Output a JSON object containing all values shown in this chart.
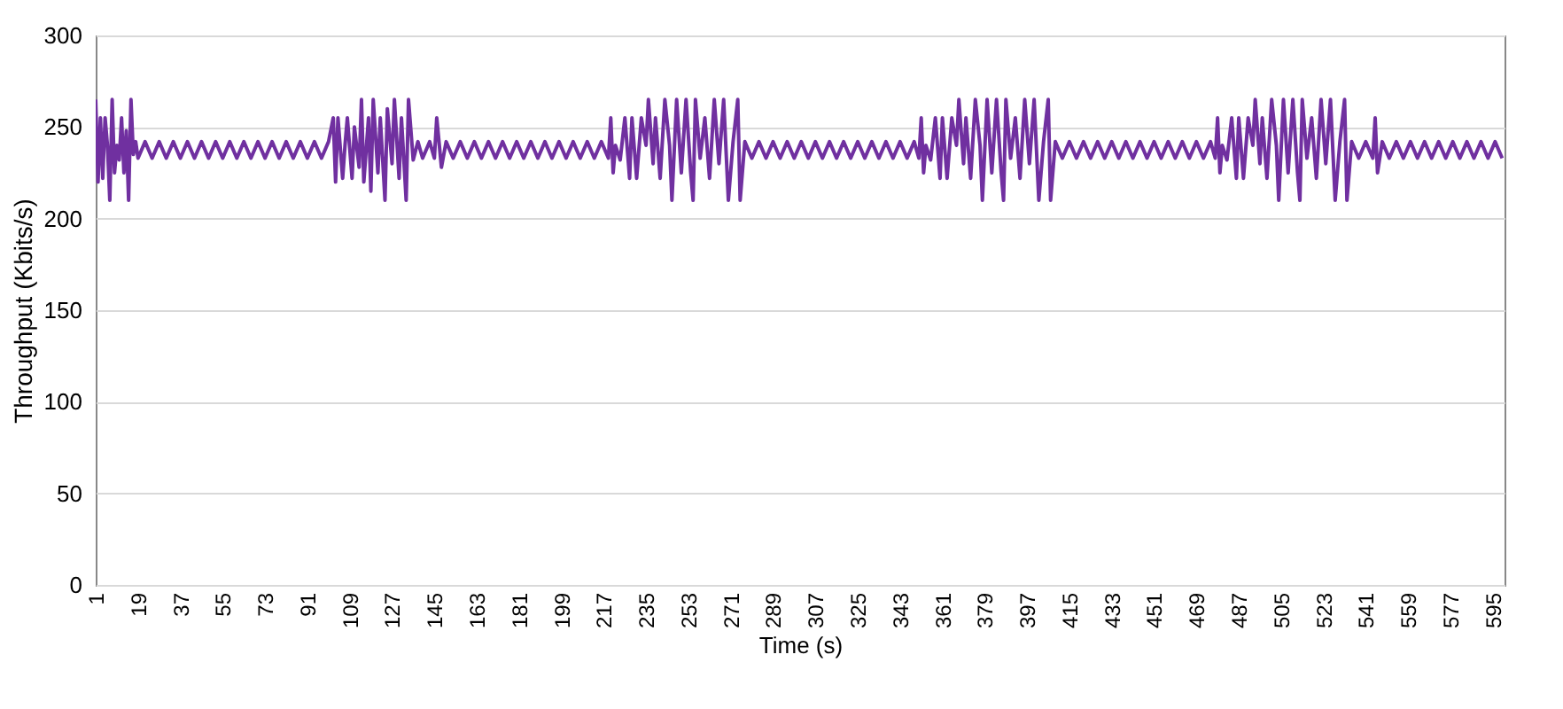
{
  "chart_data": {
    "type": "line",
    "xlabel": "Time (s)",
    "ylabel": "Throughput (Kbits/s)",
    "xlim": [
      1,
      600
    ],
    "ylim": [
      0,
      300
    ],
    "xticks": [
      1,
      19,
      37,
      55,
      73,
      91,
      109,
      127,
      145,
      163,
      181,
      199,
      217,
      235,
      253,
      271,
      289,
      307,
      325,
      343,
      361,
      379,
      397,
      415,
      433,
      451,
      469,
      487,
      505,
      523,
      541,
      559,
      577,
      595
    ],
    "yticks": [
      0,
      50,
      100,
      150,
      200,
      250,
      300
    ],
    "grid": "y",
    "marker": "none",
    "line_style": "solid",
    "x": [
      1,
      2,
      3,
      4,
      5,
      6,
      7,
      8,
      9,
      10,
      11,
      12,
      13,
      14,
      15,
      16,
      17,
      18,
      19,
      22,
      25,
      28,
      31,
      34,
      37,
      40,
      43,
      46,
      49,
      52,
      55,
      58,
      61,
      64,
      67,
      70,
      73,
      76,
      79,
      82,
      85,
      88,
      91,
      94,
      97,
      100,
      102,
      103,
      104,
      106,
      107,
      108,
      110,
      111,
      113,
      114,
      115,
      117,
      118,
      119,
      121,
      122,
      124,
      125,
      127,
      128,
      130,
      131,
      133,
      134,
      136,
      138,
      140,
      143,
      145,
      146,
      148,
      150,
      153,
      156,
      159,
      162,
      165,
      168,
      171,
      174,
      177,
      180,
      183,
      186,
      189,
      192,
      195,
      198,
      201,
      204,
      207,
      210,
      213,
      216,
      219,
      220,
      221,
      222,
      224,
      226,
      228,
      229,
      231,
      233,
      235,
      236,
      238,
      239,
      241,
      243,
      245,
      246,
      248,
      250,
      252,
      254,
      255,
      256,
      258,
      260,
      262,
      264,
      266,
      268,
      270,
      272,
      274,
      275,
      277,
      280,
      283,
      286,
      289,
      292,
      295,
      298,
      301,
      304,
      307,
      310,
      313,
      316,
      319,
      322,
      325,
      328,
      331,
      334,
      337,
      340,
      343,
      346,
      349,
      351,
      352,
      353,
      354,
      356,
      358,
      360,
      361,
      363,
      365,
      367,
      368,
      370,
      371,
      373,
      375,
      377,
      378,
      380,
      382,
      384,
      386,
      387,
      388,
      390,
      392,
      394,
      396,
      398,
      400,
      402,
      404,
      406,
      407,
      409,
      412,
      415,
      418,
      421,
      424,
      427,
      430,
      433,
      436,
      439,
      442,
      445,
      448,
      451,
      454,
      457,
      460,
      463,
      466,
      469,
      472,
      475,
      477,
      478,
      479,
      480,
      482,
      484,
      486,
      487,
      489,
      491,
      493,
      494,
      496,
      497,
      499,
      501,
      503,
      504,
      506,
      508,
      510,
      512,
      513,
      514,
      516,
      518,
      520,
      522,
      524,
      526,
      528,
      530,
      532,
      533,
      535,
      538,
      541,
      544,
      545,
      546,
      548,
      551,
      554,
      557,
      560,
      563,
      566,
      569,
      572,
      575,
      578,
      581,
      584,
      587,
      590,
      593,
      596,
      599
    ],
    "series": [
      {
        "color": "#7030a0",
        "values": [
          265,
          220,
          255,
          222,
          255,
          240,
          210,
          265,
          225,
          240,
          232,
          255,
          225,
          248,
          210,
          265,
          235,
          242,
          233,
          242,
          233,
          242,
          233,
          242,
          233,
          242,
          233,
          242,
          233,
          242,
          233,
          242,
          233,
          242,
          233,
          242,
          233,
          242,
          233,
          242,
          233,
          242,
          233,
          242,
          233,
          242,
          255,
          220,
          255,
          222,
          240,
          255,
          222,
          250,
          228,
          265,
          220,
          255,
          215,
          265,
          225,
          255,
          210,
          260,
          230,
          265,
          222,
          255,
          210,
          265,
          232,
          242,
          233,
          242,
          233,
          255,
          228,
          242,
          233,
          242,
          233,
          242,
          233,
          242,
          233,
          242,
          233,
          242,
          233,
          242,
          233,
          242,
          233,
          242,
          233,
          242,
          233,
          242,
          233,
          242,
          233,
          255,
          225,
          240,
          232,
          255,
          222,
          255,
          222,
          255,
          240,
          265,
          230,
          255,
          222,
          265,
          240,
          210,
          265,
          225,
          265,
          225,
          210,
          265,
          233,
          255,
          222,
          265,
          230,
          265,
          210,
          242,
          265,
          210,
          242,
          233,
          242,
          233,
          242,
          233,
          242,
          233,
          242,
          233,
          242,
          233,
          242,
          233,
          242,
          233,
          242,
          233,
          242,
          233,
          242,
          233,
          242,
          233,
          242,
          233,
          255,
          225,
          240,
          232,
          255,
          222,
          255,
          222,
          255,
          240,
          265,
          230,
          255,
          222,
          265,
          240,
          210,
          265,
          225,
          265,
          225,
          210,
          265,
          233,
          255,
          222,
          265,
          230,
          265,
          210,
          242,
          265,
          210,
          242,
          233,
          242,
          233,
          242,
          233,
          242,
          233,
          242,
          233,
          242,
          233,
          242,
          233,
          242,
          233,
          242,
          233,
          242,
          233,
          242,
          233,
          242,
          233,
          255,
          225,
          240,
          232,
          255,
          222,
          255,
          222,
          255,
          240,
          265,
          230,
          255,
          222,
          265,
          240,
          210,
          265,
          225,
          265,
          225,
          210,
          265,
          233,
          255,
          222,
          265,
          230,
          265,
          210,
          242,
          265,
          210,
          242,
          233,
          242,
          233,
          255,
          225,
          242,
          233,
          242,
          233,
          242,
          233,
          242,
          233,
          242,
          233,
          242,
          233,
          242,
          233,
          242,
          233,
          242,
          233
        ]
      }
    ]
  }
}
